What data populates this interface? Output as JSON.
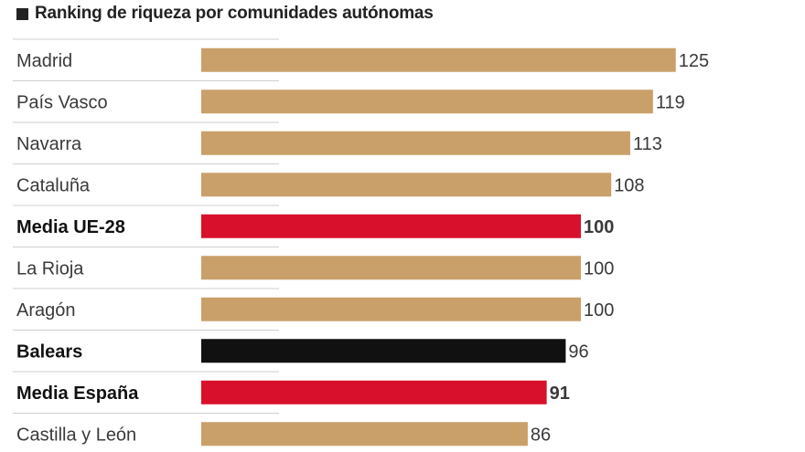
{
  "chart_data": {
    "type": "bar",
    "orientation": "horizontal",
    "title": "Ranking de riqueza por comunidades autónomas",
    "categories": [
      "Madrid",
      "País Vasco",
      "Navarra",
      "Cataluña",
      "Media UE-28",
      "La Rioja",
      "Aragón",
      "Balears",
      "Media España",
      "Castilla y León"
    ],
    "values": [
      125,
      119,
      113,
      108,
      100,
      100,
      100,
      96,
      91,
      86
    ],
    "bold": [
      false,
      false,
      false,
      false,
      true,
      false,
      false,
      true,
      true,
      false
    ],
    "bar_colors": [
      "#c9a06a",
      "#c9a06a",
      "#c9a06a",
      "#c9a06a",
      "#d8102c",
      "#c9a06a",
      "#c9a06a",
      "#111111",
      "#d8102c",
      "#c9a06a"
    ],
    "xlabel": "",
    "ylabel": "",
    "grid": false,
    "legend": "none"
  }
}
